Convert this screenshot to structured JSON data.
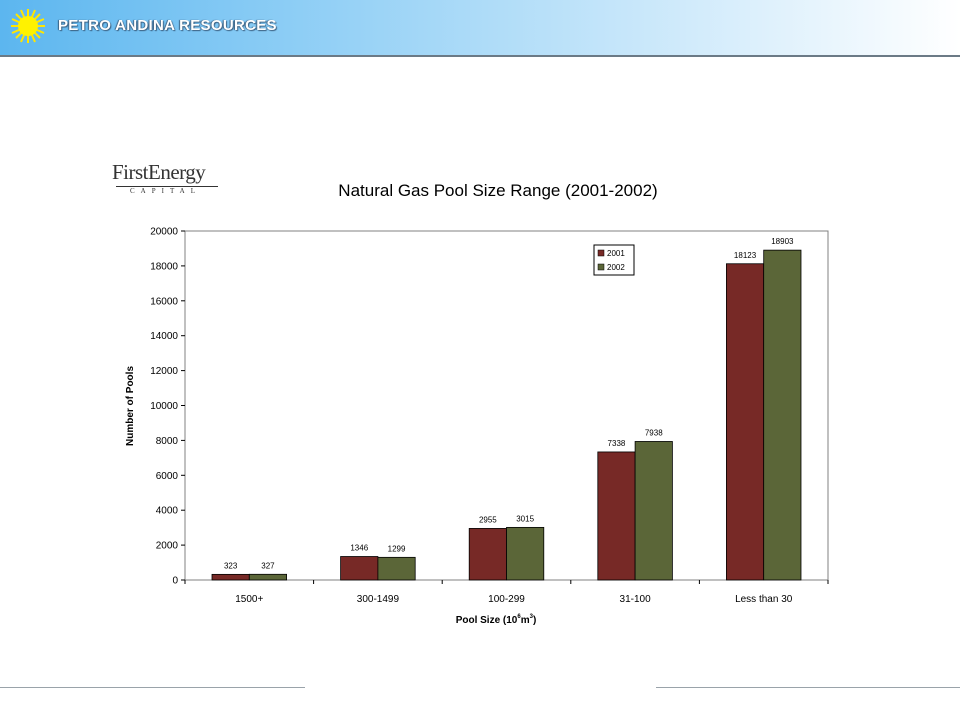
{
  "header": {
    "company": "PETRO ANDINA RESOURCES"
  },
  "logo": {
    "main": "FirstEnergy",
    "sub": "CAPITAL"
  },
  "colors": {
    "series_2001": "#772926",
    "series_2002": "#5b6638"
  },
  "chart_data": {
    "type": "bar",
    "title": "Natural Gas Pool Size Range (2001-2002)",
    "xlabel_main": "Pool Size (10",
    "xlabel_sup1": "6",
    "xlabel_unit": "m",
    "xlabel_sup2": "3",
    "xlabel_end": ")",
    "ylabel": "Number of Pools",
    "categories": [
      "1500+",
      "300-1499",
      "100-299",
      "31-100",
      "Less than 30"
    ],
    "series": [
      {
        "name": "2001",
        "values": [
          323,
          1346,
          2955,
          7338,
          18123
        ]
      },
      {
        "name": "2002",
        "values": [
          327,
          1299,
          3015,
          7938,
          18903
        ]
      }
    ],
    "yticks": [
      0,
      2000,
      4000,
      6000,
      8000,
      10000,
      12000,
      14000,
      16000,
      18000,
      20000
    ],
    "ylim": [
      0,
      20000
    ],
    "grid": false,
    "legend": "top-right"
  }
}
